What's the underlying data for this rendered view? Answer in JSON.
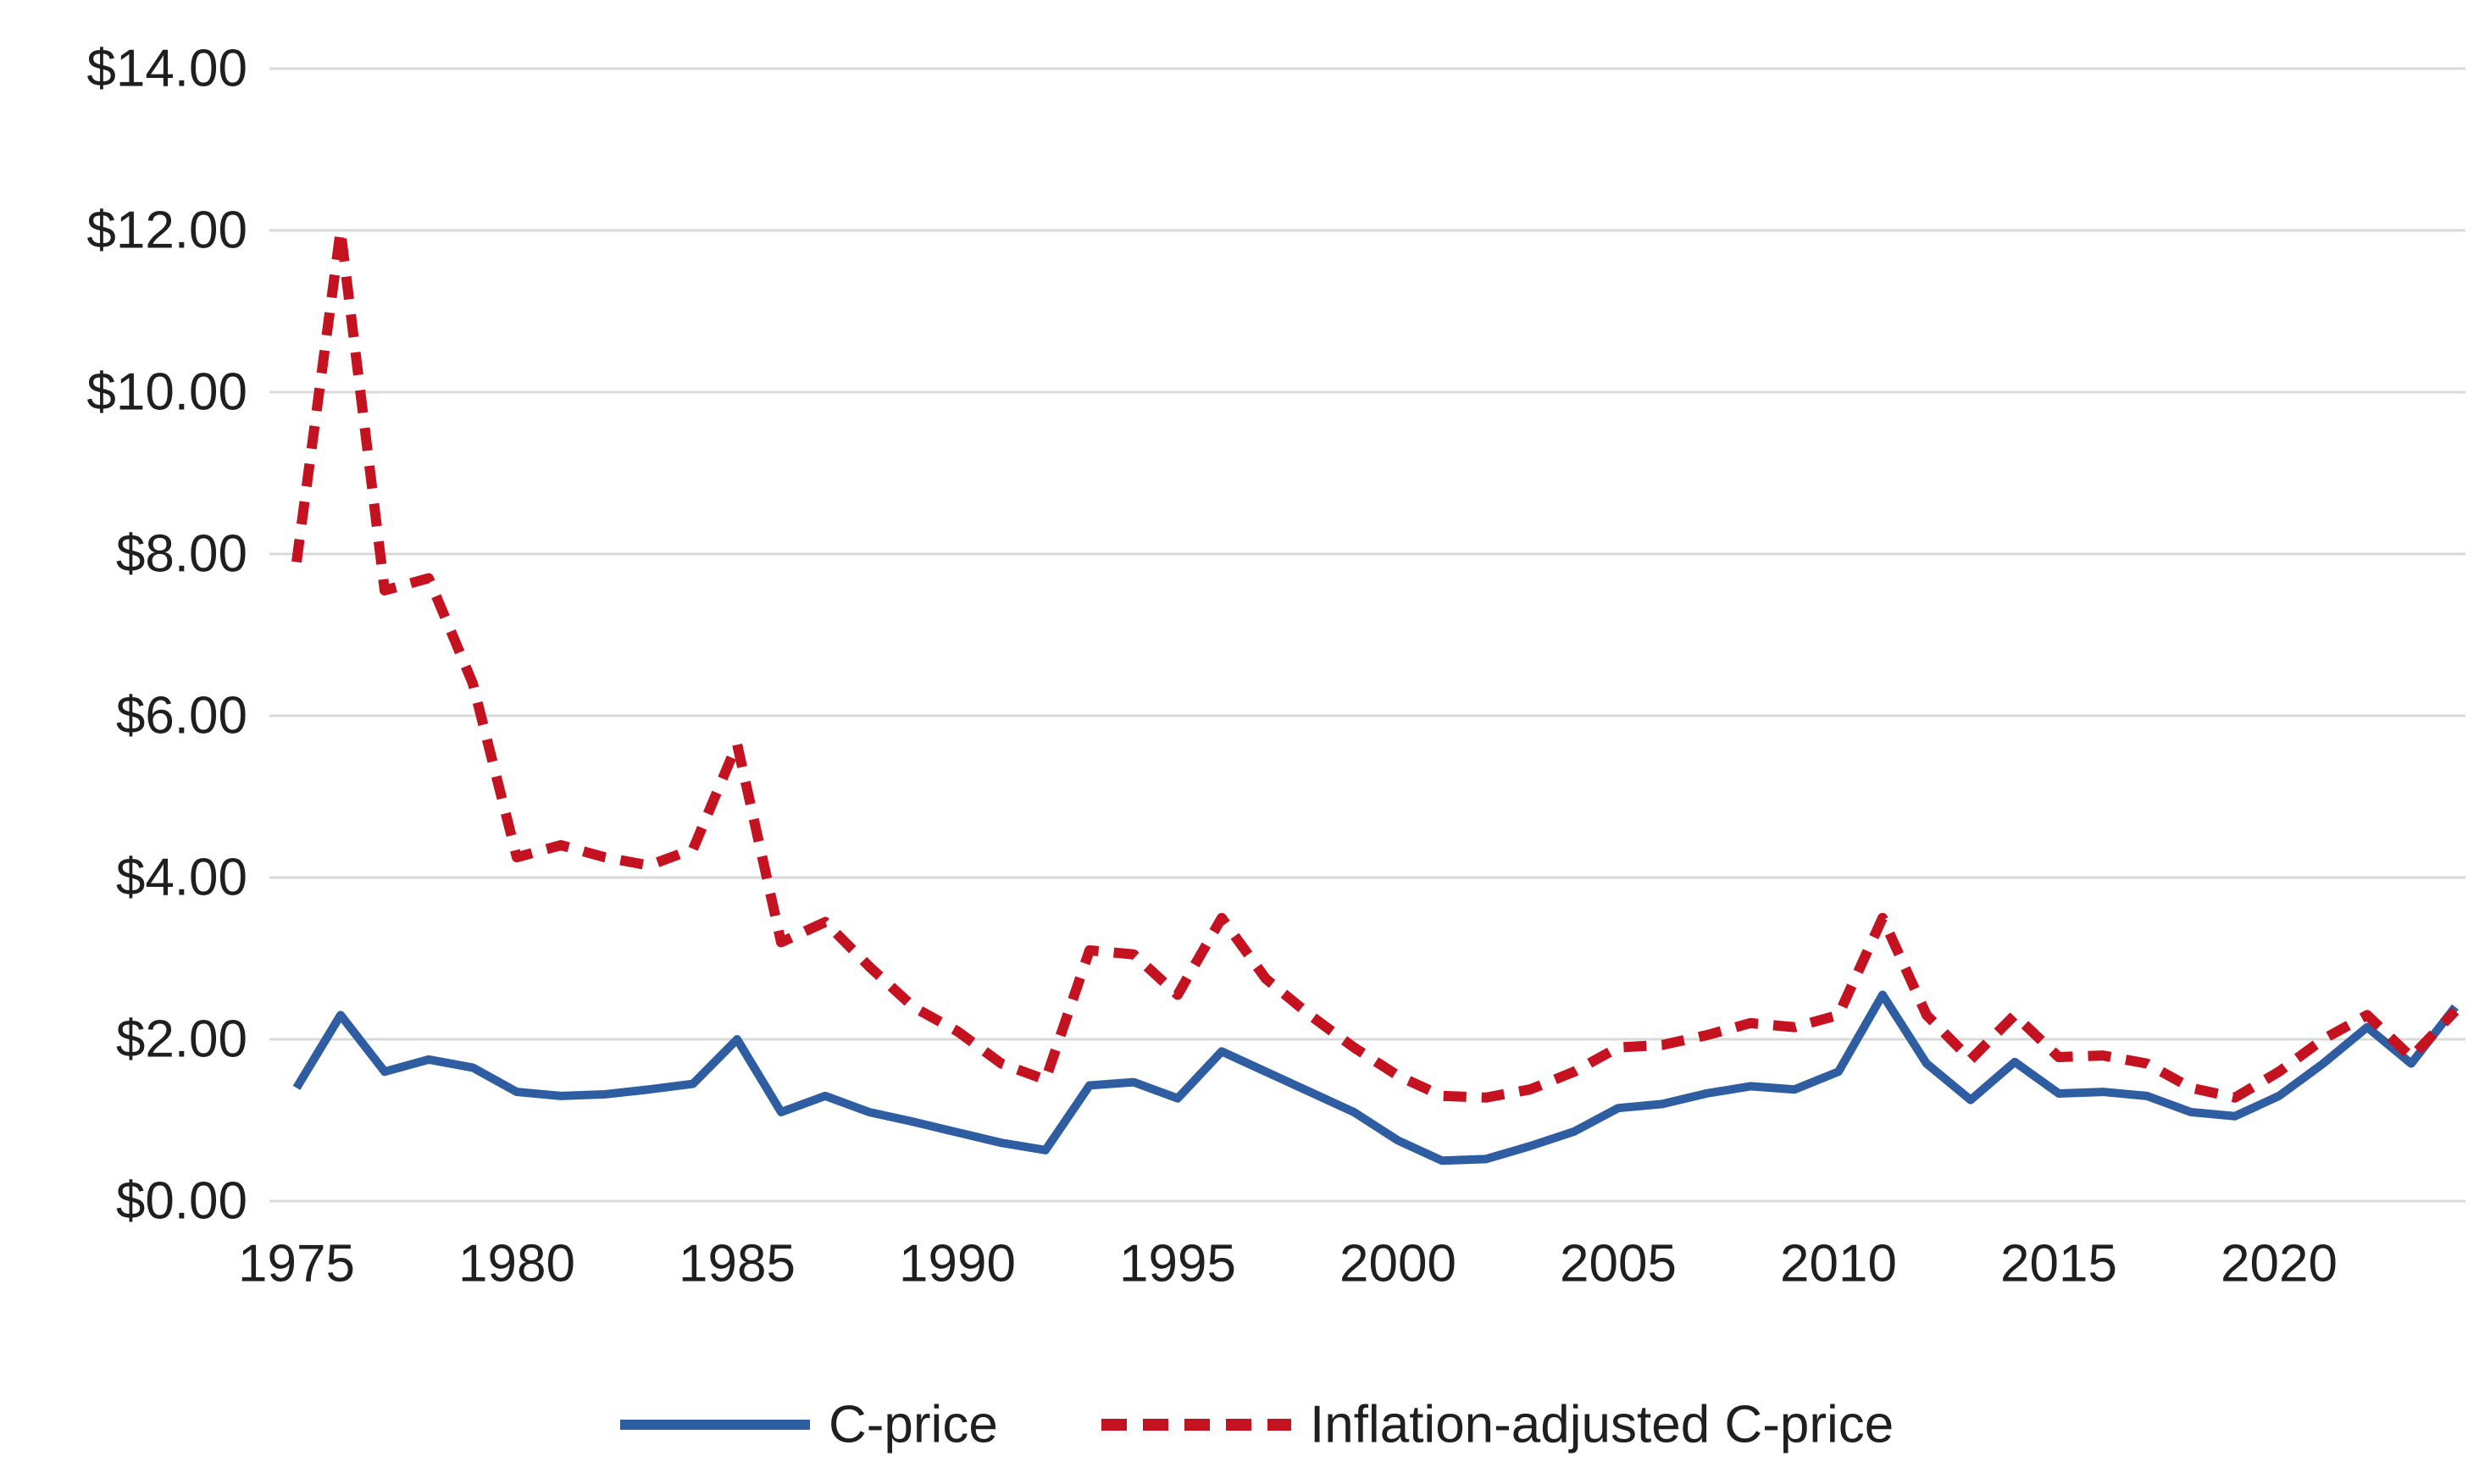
{
  "chart_data": {
    "type": "line",
    "title": "",
    "xlabel": "",
    "ylabel": "",
    "x": [
      1975,
      1976,
      1977,
      1978,
      1979,
      1980,
      1981,
      1982,
      1983,
      1984,
      1985,
      1986,
      1987,
      1988,
      1989,
      1990,
      1991,
      1992,
      1993,
      1994,
      1995,
      1996,
      1997,
      1998,
      1999,
      2000,
      2001,
      2002,
      2003,
      2004,
      2005,
      2006,
      2007,
      2008,
      2009,
      2010,
      2011,
      2012,
      2013,
      2014,
      2015,
      2016,
      2017,
      2018,
      2019,
      2020,
      2021,
      2022,
      2023,
      2024
    ],
    "series": [
      {
        "name": "C-price",
        "style": "solid",
        "color": "#2e5da1",
        "values": [
          1.4,
          2.3,
          1.6,
          1.75,
          1.65,
          1.35,
          1.3,
          1.32,
          1.38,
          1.45,
          2.0,
          1.1,
          1.3,
          1.1,
          0.98,
          0.85,
          0.72,
          0.63,
          1.43,
          1.47,
          1.27,
          1.85,
          1.6,
          1.35,
          1.1,
          0.75,
          0.5,
          0.52,
          0.68,
          0.86,
          1.15,
          1.2,
          1.33,
          1.42,
          1.38,
          1.6,
          2.55,
          1.7,
          1.25,
          1.72,
          1.33,
          1.35,
          1.3,
          1.1,
          1.05,
          1.3,
          1.7,
          2.15,
          1.7,
          2.4
        ]
      },
      {
        "name": "Inflation-adjusted C-price",
        "style": "dashed",
        "color": "#c41220",
        "values": [
          7.9,
          12.0,
          7.55,
          7.7,
          6.4,
          4.25,
          4.4,
          4.25,
          4.15,
          4.35,
          5.65,
          3.2,
          3.45,
          2.9,
          2.4,
          2.1,
          1.7,
          1.5,
          3.1,
          3.05,
          2.55,
          3.5,
          2.75,
          2.3,
          1.9,
          1.55,
          1.3,
          1.28,
          1.38,
          1.6,
          1.9,
          1.93,
          2.05,
          2.2,
          2.15,
          2.3,
          3.5,
          2.3,
          1.75,
          2.3,
          1.78,
          1.8,
          1.7,
          1.4,
          1.28,
          1.6,
          2.0,
          2.3,
          1.78,
          2.35
        ]
      }
    ],
    "ylim": [
      0,
      14
    ],
    "y_tick_step": 2,
    "y_tick_labels": [
      "$0.00",
      "$2.00",
      "$4.00",
      "$6.00",
      "$8.00",
      "$10.00",
      "$12.00",
      "$14.00"
    ],
    "x_ticks": [
      1975,
      1980,
      1985,
      1990,
      1995,
      2000,
      2005,
      2010,
      2015,
      2020
    ],
    "x_tick_labels": [
      "1975",
      "1980",
      "1985",
      "1990",
      "1995",
      "2000",
      "2005",
      "2010",
      "2015",
      "2020"
    ],
    "grid": "horizontal",
    "legend_position": "bottom-center",
    "background_color": "#ffffff",
    "gridline_color": "#d9d9d9",
    "text_color": "#1f1f1f"
  }
}
